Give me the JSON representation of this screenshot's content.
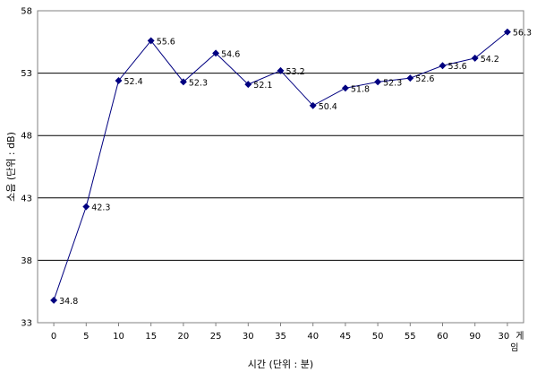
{
  "chart_data": {
    "type": "line",
    "title": "",
    "xlabel": "시간 (단위 : 분)",
    "ylabel": "소음 (단위 : dB)",
    "ylim": [
      33,
      58
    ],
    "yticks": [
      "33",
      "38",
      "43",
      "48",
      "53",
      "58"
    ],
    "grid": "horizontal",
    "legend": "none",
    "line_color": "#000080",
    "categories": [
      "0",
      "5",
      "10",
      "15",
      "20",
      "25",
      "30",
      "35",
      "40",
      "45",
      "50",
      "55",
      "60",
      "90",
      "30 게임"
    ],
    "series": [
      {
        "values": [
          34.8,
          42.3,
          52.4,
          55.6,
          52.3,
          54.6,
          52.1,
          53.2,
          50.4,
          51.8,
          52.3,
          52.6,
          53.6,
          54.2,
          56.3
        ],
        "labels": [
          "34.8",
          "42.3",
          "52.4",
          "55.6",
          "52.3",
          "54.6",
          "52.1",
          "53.2",
          "50.4",
          "51.8",
          "52.3",
          "52.6",
          "53.6",
          "54.2",
          "56.3"
        ]
      }
    ]
  }
}
